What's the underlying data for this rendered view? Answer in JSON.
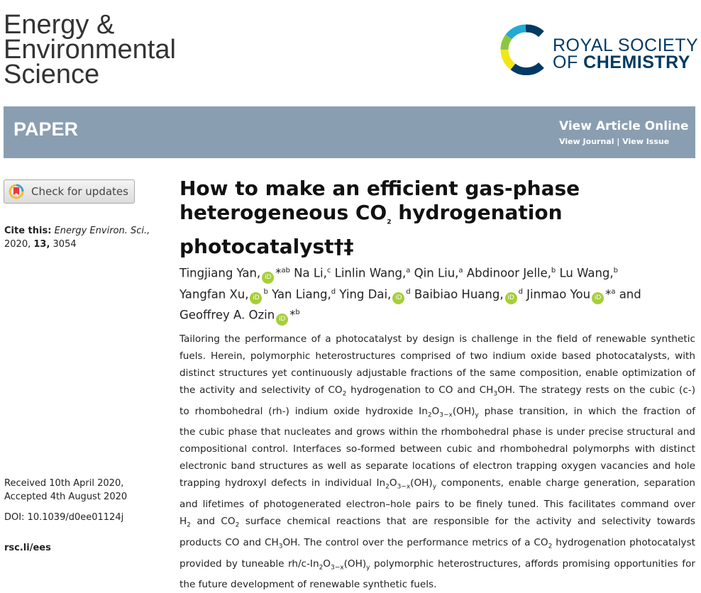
{
  "journal": {
    "title_lines": [
      "Energy &",
      "Environmental",
      "Science"
    ]
  },
  "publisher": {
    "line1": "ROYAL SOCIETY",
    "line2_of": "OF ",
    "line2_bold": "CHEMISTRY",
    "logo_colors": [
      "#003a63",
      "#23a9d6",
      "#8cc63f",
      "#f0e619"
    ]
  },
  "banner": {
    "type": "PAPER",
    "view_article": "View Article Online",
    "view_journal": "View Journal",
    "separator": " | ",
    "view_issue": "View Issue",
    "color": "#8a9eb1"
  },
  "sidebar": {
    "check_updates": "Check for updates",
    "cite_label": "Cite this:",
    "cite_journal": "Energy Environ. Sci.,",
    "cite_year": "2020,",
    "cite_volume": "13,",
    "cite_page": "3054",
    "received": "Received 10th April 2020,",
    "accepted": "Accepted 4th August 2020",
    "doi": "DOI: 10.1039/d0ee01124j",
    "url": "rsc.li/ees"
  },
  "article": {
    "title_lines": [
      [
        {
          "t": "How to make an efficient gas-phase"
        }
      ],
      [
        {
          "t": "heterogeneous CO"
        },
        {
          "t": "2",
          "s": "sub"
        },
        {
          "t": " hydrogenation"
        }
      ],
      [
        {
          "t": "photocatalyst†‡"
        }
      ]
    ],
    "authors": [
      [
        {
          "t": "Tingjiang Yan,"
        },
        {
          "o": 1
        },
        {
          "t": "*"
        },
        {
          "t": "ab",
          "s": "sup"
        },
        {
          "t": " Na Li,"
        },
        {
          "t": "c",
          "s": "sup"
        },
        {
          "t": " Linlin Wang,"
        },
        {
          "t": "a",
          "s": "sup"
        },
        {
          "t": " Qin Liu,"
        },
        {
          "t": "a",
          "s": "sup"
        },
        {
          "t": " Abdinoor Jelle,"
        },
        {
          "t": "b",
          "s": "sup"
        },
        {
          "t": " Lu Wang,"
        },
        {
          "t": "b",
          "s": "sup"
        }
      ],
      [
        {
          "t": "Yangfan Xu,"
        },
        {
          "o": 1
        },
        {
          "t": "b",
          "s": "sup"
        },
        {
          "t": " Yan Liang,"
        },
        {
          "t": "d",
          "s": "sup"
        },
        {
          "t": " Ying Dai,"
        },
        {
          "o": 1
        },
        {
          "t": "d",
          "s": "sup"
        },
        {
          "t": " Baibiao Huang,"
        },
        {
          "o": 1
        },
        {
          "t": "d",
          "s": "sup"
        },
        {
          "t": " Jinmao You"
        },
        {
          "o": 1
        },
        {
          "t": "*"
        },
        {
          "t": "a",
          "s": "sup"
        },
        {
          "t": " and"
        }
      ],
      [
        {
          "t": "Geoffrey A. Ozin"
        },
        {
          "o": 1
        },
        {
          "t": "*"
        },
        {
          "t": "b",
          "s": "sup"
        }
      ]
    ],
    "orcid_label": "iD",
    "abstract": [
      [
        {
          "t": "Tailoring the performance of a photocatalyst by design is challenge in the field of renewable synthetic"
        }
      ],
      [
        {
          "t": "fuels. Herein, polymorphic heterostructures comprised of two indium oxide based photocatalysts, with"
        }
      ],
      [
        {
          "t": "distinct structures yet continuously adjustable fractions of the same composition, enable optimization of"
        }
      ],
      [
        {
          "t": "the activity and selectivity of CO"
        },
        {
          "t": "2",
          "s": "sub"
        },
        {
          "t": " hydrogenation to CO and CH"
        },
        {
          "t": "3",
          "s": "sub"
        },
        {
          "t": "OH. The strategy rests on the cubic (c-)"
        }
      ],
      [
        {
          "t": "to rhombohedral (rh-) indium oxide hydroxide In"
        },
        {
          "t": "2",
          "s": "sub"
        },
        {
          "t": "O"
        },
        {
          "t": "3−x",
          "s": "sub"
        },
        {
          "t": "(OH)"
        },
        {
          "t": "y",
          "s": "sub"
        },
        {
          "t": " phase transition, in which the fraction of"
        }
      ],
      [
        {
          "t": "the cubic phase that nucleates and grows within the rhombohedral phase is under precise structural and"
        }
      ],
      [
        {
          "t": "compositional control. Interfaces so-formed between cubic and rhombohedral polymorphs with distinct"
        }
      ],
      [
        {
          "t": "electronic band structures as well as separate locations of electron trapping oxygen vacancies and hole"
        }
      ],
      [
        {
          "t": "trapping hydroxyl defects in individual In"
        },
        {
          "t": "2",
          "s": "sub"
        },
        {
          "t": "O"
        },
        {
          "t": "3−x",
          "s": "sub"
        },
        {
          "t": "(OH)"
        },
        {
          "t": "y",
          "s": "sub"
        },
        {
          "t": " components, enable charge generation, separation"
        }
      ],
      [
        {
          "t": "and lifetimes of photogenerated electron–hole pairs to be finely tuned. This facilitates command over"
        }
      ],
      [
        {
          "t": "H"
        },
        {
          "t": "2",
          "s": "sub"
        },
        {
          "t": " and CO"
        },
        {
          "t": "2",
          "s": "sub"
        },
        {
          "t": " surface chemical reactions that are responsible for the activity and selectivity towards"
        }
      ],
      [
        {
          "t": "products CO and CH"
        },
        {
          "t": "3",
          "s": "sub"
        },
        {
          "t": "OH. The control over the performance metrics of a CO"
        },
        {
          "t": "2",
          "s": "sub"
        },
        {
          "t": " hydrogenation photocatalyst"
        }
      ],
      [
        {
          "t": "provided by tuneable rh/c-In"
        },
        {
          "t": "2",
          "s": "sub"
        },
        {
          "t": "O"
        },
        {
          "t": "3−x",
          "s": "sub"
        },
        {
          "t": "(OH)"
        },
        {
          "t": "y",
          "s": "sub"
        },
        {
          "t": " polymorphic heterostructures, affords promising opportunities for"
        }
      ],
      [
        {
          "t": "the future development of renewable synthetic fuels."
        }
      ]
    ]
  }
}
